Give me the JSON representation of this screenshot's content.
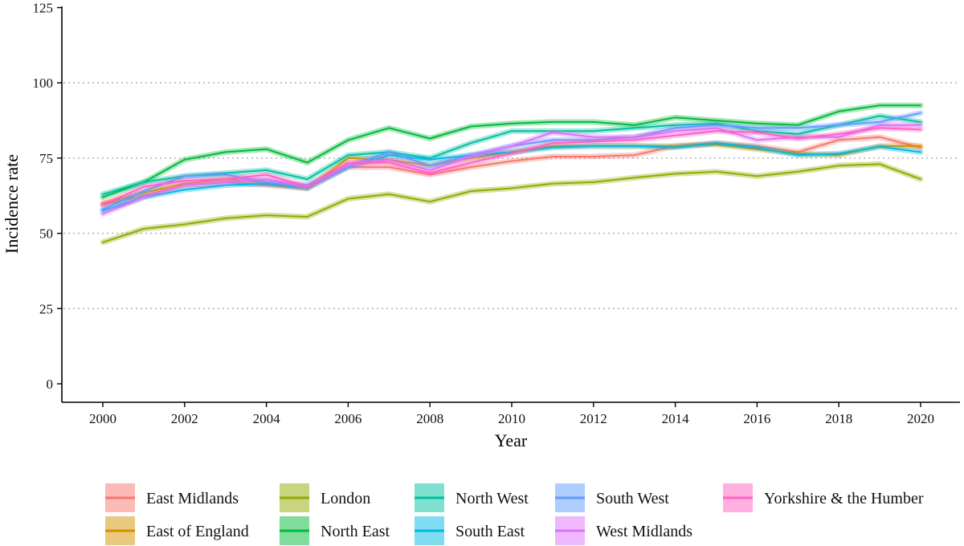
{
  "chart_data": {
    "type": "line",
    "xlabel": "Year",
    "ylabel": "Incidence rate",
    "xlim": [
      2000,
      2020
    ],
    "ylim": [
      0,
      125
    ],
    "xticks": [
      2000,
      2002,
      2004,
      2006,
      2008,
      2010,
      2012,
      2014,
      2016,
      2018,
      2020
    ],
    "yticks": [
      0,
      25,
      50,
      75,
      100,
      125
    ],
    "grid": "horizontal dotted at 25, 50, 75, 100",
    "legend_position": "bottom",
    "x": [
      2000,
      2001,
      2002,
      2003,
      2004,
      2005,
      2006,
      2007,
      2008,
      2009,
      2010,
      2011,
      2012,
      2013,
      2014,
      2015,
      2016,
      2017,
      2018,
      2019,
      2020
    ],
    "series": [
      {
        "name": "East Midlands",
        "color": "#F8766D",
        "values": [
          59.5,
          62.5,
          66,
          67,
          66,
          65,
          72,
          72,
          69.5,
          72,
          74,
          75.5,
          75.5,
          76,
          79,
          80,
          79,
          77,
          81,
          82,
          78.5
        ]
      },
      {
        "name": "East of England",
        "color": "#D39200",
        "values": [
          60,
          63.5,
          66.5,
          68,
          67,
          65,
          75,
          74.5,
          72.5,
          75,
          77,
          79,
          79,
          79,
          79,
          79.5,
          78,
          76.5,
          76,
          79,
          79
        ]
      },
      {
        "name": "London",
        "color": "#93AA00",
        "values": [
          47,
          51.5,
          53,
          55,
          56,
          55.5,
          61.5,
          63,
          60.5,
          64,
          65,
          66.5,
          67,
          68.5,
          69.8,
          70.5,
          69,
          70.5,
          72.5,
          73,
          68
        ]
      },
      {
        "name": "North East",
        "color": "#00BA38",
        "values": [
          62,
          67,
          74.5,
          77,
          78,
          73.5,
          81,
          85,
          81.5,
          85.5,
          86.5,
          87,
          87,
          86,
          88.5,
          87.5,
          86.5,
          86,
          90.5,
          92.5,
          92.5
        ]
      },
      {
        "name": "North West",
        "color": "#00C19F",
        "values": [
          63,
          67,
          69,
          70,
          71,
          68,
          76,
          77,
          75,
          80,
          84,
          84,
          84,
          85,
          86,
          86.5,
          84,
          83,
          86,
          89,
          87
        ]
      },
      {
        "name": "South East",
        "color": "#00B9E3",
        "values": [
          57.5,
          62,
          64.5,
          66,
          66.5,
          65,
          72,
          76,
          74.5,
          76,
          77,
          78.5,
          79,
          79,
          78.5,
          80,
          78.5,
          76,
          76.5,
          78.8,
          77
        ]
      },
      {
        "name": "South West",
        "color": "#619CFF",
        "values": [
          58,
          64,
          69,
          69.5,
          67,
          66,
          72.5,
          77,
          72.5,
          76,
          79,
          81,
          81,
          82,
          85,
          86,
          85,
          85,
          86,
          87,
          90
        ]
      },
      {
        "name": "West Midlands",
        "color": "#DB72FB",
        "values": [
          56.5,
          62,
          66,
          67,
          68,
          65.5,
          72.5,
          74.5,
          71,
          75.5,
          79,
          83.5,
          82,
          82,
          84,
          85,
          81,
          82,
          82,
          86,
          86
        ]
      },
      {
        "name": "Yorkshire & the Humber",
        "color": "#FF61C3",
        "values": [
          59.5,
          65.5,
          67.5,
          68,
          69.5,
          65.5,
          73.5,
          73.5,
          70,
          73.5,
          76.5,
          80,
          80.5,
          81,
          82.5,
          84,
          83.5,
          81.5,
          83,
          85,
          84.5
        ]
      }
    ]
  }
}
